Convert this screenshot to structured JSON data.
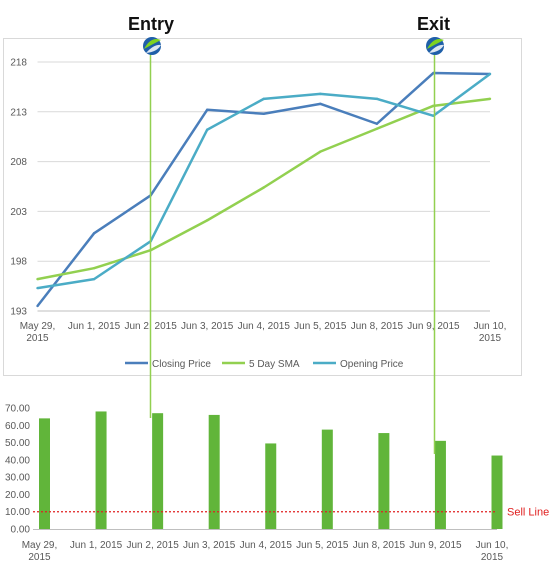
{
  "chart_data": [
    {
      "type": "line",
      "categories": [
        "May 29, 2015",
        "Jun 1, 2015",
        "Jun 2, 2015",
        "Jun 3, 2015",
        "Jun 4, 2015",
        "Jun 5, 2015",
        "Jun 8, 2015",
        "Jun 9, 2015",
        "Jun 10, 2015"
      ],
      "category_lines": [
        [
          "May 29,",
          "2015"
        ],
        [
          "Jun 1, 2015"
        ],
        [
          "Jun 2, 2015"
        ],
        [
          "Jun 3, 2015"
        ],
        [
          "Jun 4, 2015"
        ],
        [
          "Jun 5, 2015"
        ],
        [
          "Jun 8, 2015"
        ],
        [
          "Jun 9, 2015"
        ],
        [
          "Jun 10,",
          "2015"
        ]
      ],
      "series": [
        {
          "name": "Closing Price",
          "color": "#4a7ebb",
          "values": [
            193.5,
            200.8,
            204.6,
            213.2,
            212.8,
            213.8,
            211.8,
            216.9,
            216.8
          ]
        },
        {
          "name": "5 Day SMA",
          "color": "#92d050",
          "values": [
            196.2,
            197.3,
            199.1,
            202.1,
            205.4,
            209.0,
            211.3,
            213.6,
            214.3
          ]
        },
        {
          "name": "Opening Price",
          "color": "#4bacc6",
          "values": [
            195.3,
            196.2,
            200.0,
            211.2,
            214.3,
            214.8,
            214.3,
            212.6,
            216.8
          ]
        }
      ],
      "yticks": [
        "193",
        "198",
        "203",
        "208",
        "213",
        "218"
      ],
      "ylim": [
        193,
        220
      ],
      "grid": true,
      "legend": "bottom",
      "annotations": [
        {
          "label": "Entry",
          "category": "Jun 2, 2015"
        },
        {
          "label": "Exit",
          "category": "Jun 9, 2015"
        }
      ]
    },
    {
      "type": "bar",
      "categories": [
        "May 29, 2015",
        "Jun 1, 2015",
        "Jun 2, 2015",
        "Jun 3, 2015",
        "Jun 4, 2015",
        "Jun 5, 2015",
        "Jun 8, 2015",
        "Jun 9, 2015",
        "Jun 10, 2015"
      ],
      "category_lines": [
        [
          "May 29,",
          "2015"
        ],
        [
          "Jun 1, 2015"
        ],
        [
          "Jun 2, 2015"
        ],
        [
          "Jun 3, 2015"
        ],
        [
          "Jun 4, 2015"
        ],
        [
          "Jun 5, 2015"
        ],
        [
          "Jun 8, 2015"
        ],
        [
          "Jun 9, 2015"
        ],
        [
          "Jun 10,",
          "2015"
        ]
      ],
      "values": [
        64,
        68,
        67,
        66,
        49.5,
        57.5,
        55.5,
        51,
        42.5
      ],
      "color": "#61b53a",
      "yticks": [
        "0.00",
        "10.00",
        "20.00",
        "30.00",
        "40.00",
        "50.00",
        "60.00",
        "70.00"
      ],
      "ylim": [
        0,
        70
      ],
      "reference_line": {
        "value": 10,
        "label": "Sell Line",
        "color": "#e02020"
      }
    }
  ]
}
